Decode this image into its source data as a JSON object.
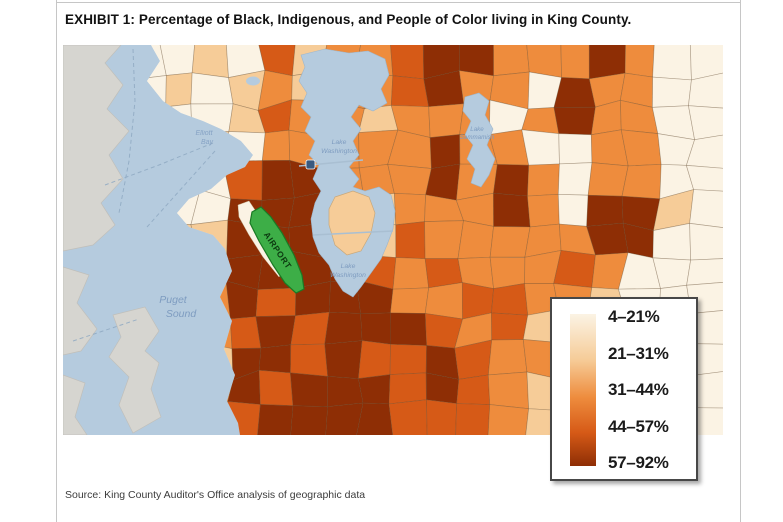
{
  "page": {
    "title": "EXHIBIT 1: Percentage of Black, Indigenous, and People of Color living in King County.",
    "source": "Source: King County Auditor's Office analysis of geographic data"
  },
  "legend": {
    "items": [
      {
        "label": "4–21%",
        "color": "#FBF3E4"
      },
      {
        "label": "21–31%",
        "color": "#F6CC98"
      },
      {
        "label": "31–44%",
        "color": "#EE8C3D"
      },
      {
        "label": "44–57%",
        "color": "#D65A17"
      },
      {
        "label": "57–92%",
        "color": "#8E2E05"
      }
    ]
  },
  "map": {
    "class_colors": [
      "#FBF3E4",
      "#F6CC98",
      "#EE8C3D",
      "#D65A17",
      "#8E2E05"
    ],
    "water_color": "#B5CBDE",
    "outside_land_color": "#D6D5D0",
    "airport_color": "#3DAE47",
    "water_label_color": "#7E9CC0",
    "labels": {
      "elliott_bay": [
        "Elliott",
        "Bay"
      ],
      "puget_sound": [
        "Puget",
        "Sound"
      ],
      "lake_washington_north": [
        "Lake",
        "Washington"
      ],
      "lake_washington_south": [
        "Lake",
        "Washington"
      ],
      "lake_sammamish": [
        "Lake",
        "Sammamish"
      ],
      "airport": "AIRPORT"
    }
  }
}
